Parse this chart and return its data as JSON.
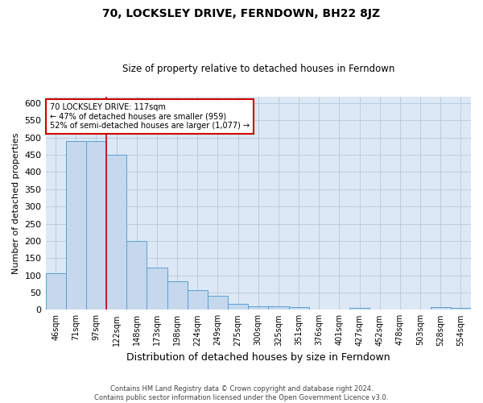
{
  "title": "70, LOCKSLEY DRIVE, FERNDOWN, BH22 8JZ",
  "subtitle": "Size of property relative to detached houses in Ferndown",
  "xlabel": "Distribution of detached houses by size in Ferndown",
  "ylabel": "Number of detached properties",
  "footer_line1": "Contains HM Land Registry data © Crown copyright and database right 2024.",
  "footer_line2": "Contains public sector information licensed under the Open Government Licence v3.0.",
  "categories": [
    "46sqm",
    "71sqm",
    "97sqm",
    "122sqm",
    "148sqm",
    "173sqm",
    "198sqm",
    "224sqm",
    "249sqm",
    "275sqm",
    "300sqm",
    "325sqm",
    "351sqm",
    "376sqm",
    "401sqm",
    "427sqm",
    "452sqm",
    "478sqm",
    "503sqm",
    "528sqm",
    "554sqm"
  ],
  "values": [
    105,
    490,
    490,
    450,
    200,
    122,
    82,
    57,
    40,
    17,
    10,
    10,
    8,
    1,
    1,
    5,
    1,
    1,
    1,
    7,
    6
  ],
  "bar_color": "#c5d8ed",
  "bar_edge_color": "#5a9fd4",
  "background_color": "#dce8f5",
  "grid_color": "#b8c8d8",
  "vline_x": 2.5,
  "vline_color": "#cc0000",
  "annotation_text": "70 LOCKSLEY DRIVE: 117sqm\n← 47% of detached houses are smaller (959)\n52% of semi-detached houses are larger (1,077) →",
  "annotation_box_color": "#ffffff",
  "annotation_box_edge": "#cc0000",
  "ylim": [
    0,
    620
  ],
  "yticks": [
    0,
    50,
    100,
    150,
    200,
    250,
    300,
    350,
    400,
    450,
    500,
    550,
    600
  ]
}
